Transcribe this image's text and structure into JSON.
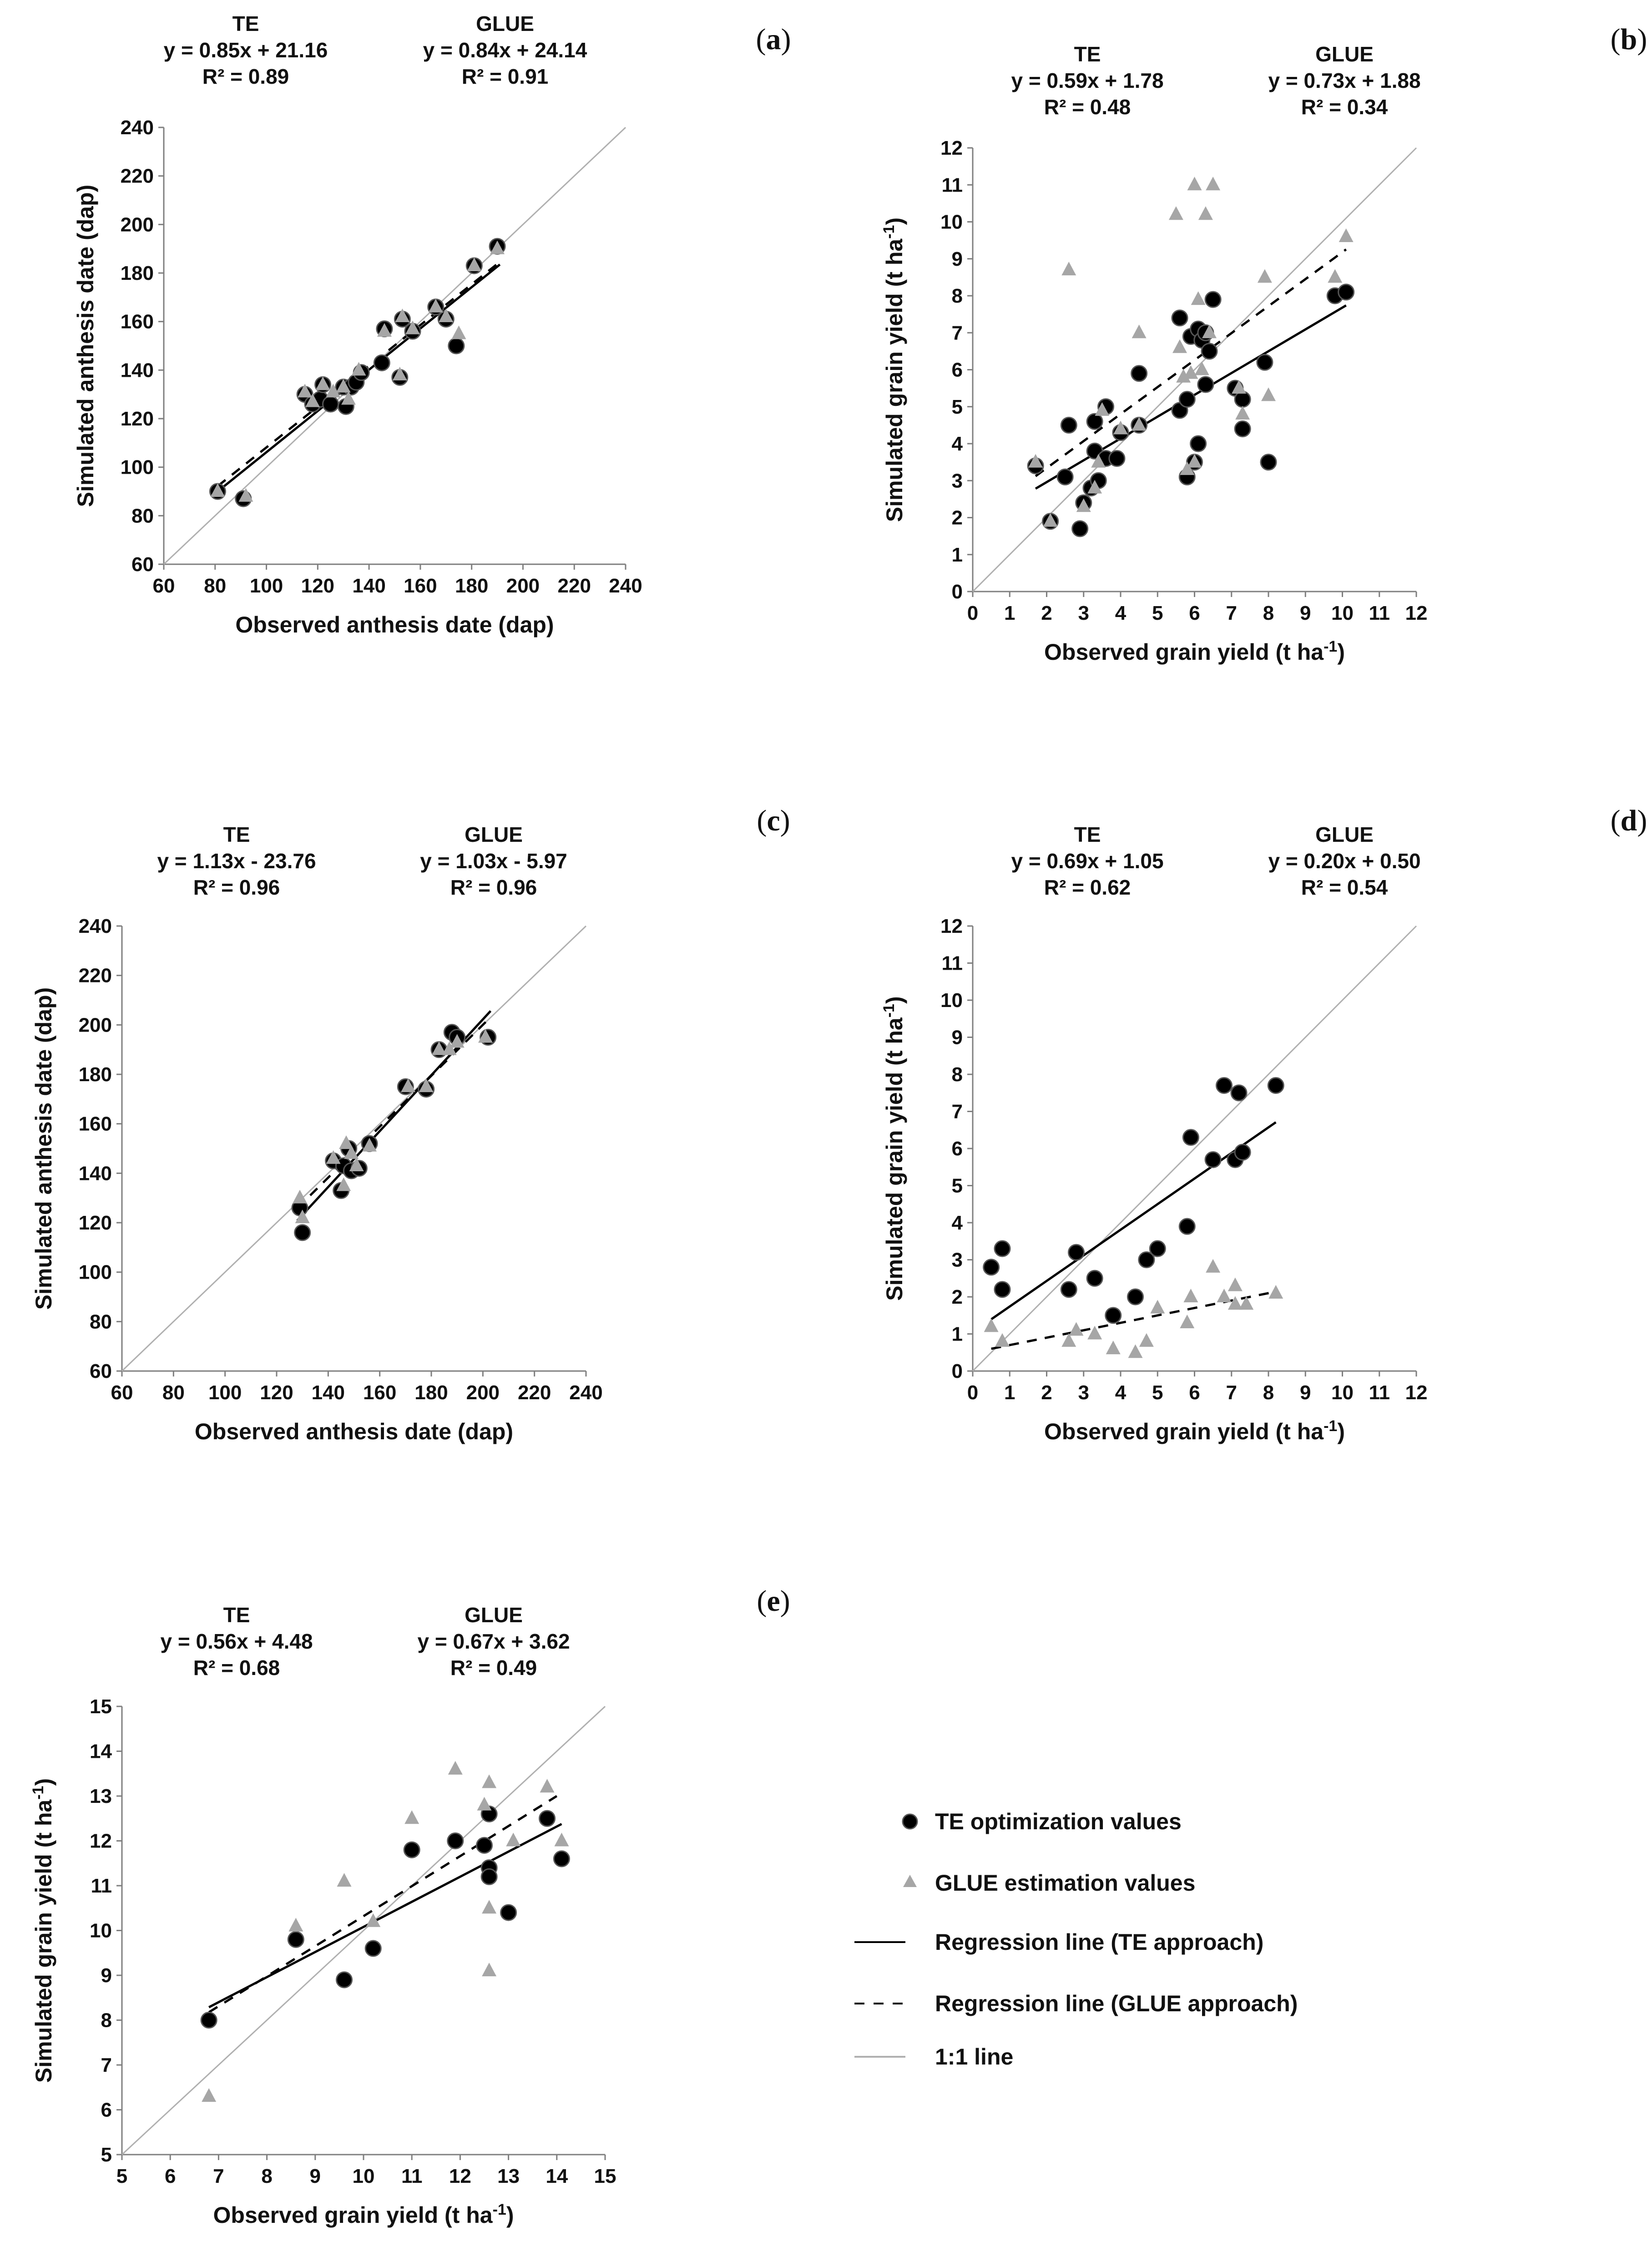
{
  "chart_data": [
    {
      "id": "a",
      "type": "scatter",
      "panel_label": "a",
      "xlabel": "Observed anthesis date (dap)",
      "ylabel": "Simulated anthesis date (dap)",
      "xlim": [
        60,
        240
      ],
      "ylim": [
        60,
        240
      ],
      "xticks": [
        60,
        80,
        100,
        120,
        140,
        160,
        180,
        200,
        220,
        240
      ],
      "yticks": [
        60,
        80,
        100,
        120,
        140,
        160,
        180,
        200,
        220,
        240
      ],
      "te_header": {
        "name": "TE",
        "equation": "y = 0.85x + 21.16",
        "r2": "R² = 0.89"
      },
      "glue_header": {
        "name": "GLUE",
        "equation": "y = 0.84x + 24.14",
        "r2": "R² = 0.91"
      },
      "te_line": {
        "slope": 0.85,
        "intercept": 21.16,
        "x_range": [
          81,
          191
        ]
      },
      "glue_line": {
        "slope": 0.84,
        "intercept": 24.14,
        "x_range": [
          81,
          191
        ]
      },
      "te_points": [
        [
          81,
          90
        ],
        [
          91,
          87
        ],
        [
          115,
          130
        ],
        [
          118,
          126
        ],
        [
          121,
          128
        ],
        [
          122,
          134
        ],
        [
          125,
          126
        ],
        [
          130,
          133
        ],
        [
          131,
          125
        ],
        [
          133,
          133
        ],
        [
          135,
          135
        ],
        [
          137,
          139
        ],
        [
          145,
          143
        ],
        [
          146,
          157
        ],
        [
          152,
          137
        ],
        [
          153,
          161
        ],
        [
          157,
          156
        ],
        [
          166,
          166
        ],
        [
          170,
          161
        ],
        [
          174,
          150
        ],
        [
          181,
          183
        ],
        [
          190,
          191
        ]
      ],
      "glue_points": [
        [
          81,
          90
        ],
        [
          92,
          88
        ],
        [
          115,
          131
        ],
        [
          118,
          127
        ],
        [
          122,
          134
        ],
        [
          126,
          131
        ],
        [
          130,
          133
        ],
        [
          132,
          128
        ],
        [
          136,
          140
        ],
        [
          146,
          156
        ],
        [
          152,
          138
        ],
        [
          153,
          162
        ],
        [
          157,
          157
        ],
        [
          166,
          166
        ],
        [
          170,
          162
        ],
        [
          175,
          155
        ],
        [
          181,
          183
        ],
        [
          190,
          190
        ]
      ]
    },
    {
      "id": "b",
      "type": "scatter",
      "panel_label": "b",
      "xlabel": "Observed grain yield (t ha-1)",
      "ylabel": "Simulated grain yield (t ha-1)",
      "xlim": [
        0,
        12
      ],
      "ylim": [
        0,
        12
      ],
      "xticks": [
        0,
        1,
        2,
        3,
        4,
        5,
        6,
        7,
        8,
        9,
        10,
        11,
        12
      ],
      "yticks": [
        0,
        1,
        2,
        3,
        4,
        5,
        6,
        7,
        8,
        9,
        10,
        11,
        12
      ],
      "te_header": {
        "name": "TE",
        "equation": "y = 0.59x + 1.78",
        "r2": "R² = 0.48"
      },
      "glue_header": {
        "name": "GLUE",
        "equation": "y = 0.73x + 1.88",
        "r2": "R² = 0.34"
      },
      "te_line": {
        "slope": 0.59,
        "intercept": 1.78,
        "x_range": [
          1.7,
          10.1
        ]
      },
      "glue_line": {
        "slope": 0.73,
        "intercept": 1.88,
        "x_range": [
          1.7,
          10.1
        ]
      },
      "te_points": [
        [
          1.7,
          3.4
        ],
        [
          2.1,
          1.9
        ],
        [
          2.5,
          3.1
        ],
        [
          2.6,
          4.5
        ],
        [
          2.9,
          1.7
        ],
        [
          3.0,
          2.4
        ],
        [
          3.2,
          2.8
        ],
        [
          3.3,
          4.6
        ],
        [
          3.3,
          3.8
        ],
        [
          3.4,
          3.0
        ],
        [
          3.6,
          5.0
        ],
        [
          3.6,
          3.6
        ],
        [
          3.9,
          3.6
        ],
        [
          4.0,
          4.3
        ],
        [
          4.5,
          5.9
        ],
        [
          4.5,
          4.5
        ],
        [
          5.6,
          7.4
        ],
        [
          5.6,
          4.9
        ],
        [
          5.8,
          5.2
        ],
        [
          5.8,
          3.1
        ],
        [
          5.9,
          6.9
        ],
        [
          6.0,
          3.5
        ],
        [
          6.1,
          7.1
        ],
        [
          6.1,
          4.0
        ],
        [
          6.2,
          6.8
        ],
        [
          6.3,
          5.6
        ],
        [
          6.3,
          7.0
        ],
        [
          6.4,
          6.5
        ],
        [
          6.5,
          7.9
        ],
        [
          7.1,
          5.5
        ],
        [
          7.3,
          5.2
        ],
        [
          7.3,
          4.4
        ],
        [
          7.9,
          6.2
        ],
        [
          8.0,
          3.5
        ],
        [
          9.8,
          8.0
        ],
        [
          10.1,
          8.1
        ]
      ],
      "glue_points": [
        [
          1.7,
          3.5
        ],
        [
          2.1,
          1.9
        ],
        [
          2.6,
          8.7
        ],
        [
          3.0,
          2.3
        ],
        [
          3.3,
          2.8
        ],
        [
          3.4,
          3.5
        ],
        [
          3.5,
          4.9
        ],
        [
          4.0,
          4.4
        ],
        [
          4.5,
          7.0
        ],
        [
          4.5,
          4.5
        ],
        [
          5.5,
          10.2
        ],
        [
          5.6,
          6.6
        ],
        [
          5.7,
          5.8
        ],
        [
          5.8,
          3.3
        ],
        [
          5.9,
          5.9
        ],
        [
          6.0,
          3.5
        ],
        [
          6.0,
          11.0
        ],
        [
          6.1,
          7.9
        ],
        [
          6.2,
          6.0
        ],
        [
          6.3,
          10.2
        ],
        [
          6.4,
          7.0
        ],
        [
          6.5,
          11.0
        ],
        [
          7.2,
          5.5
        ],
        [
          7.3,
          4.8
        ],
        [
          7.9,
          8.5
        ],
        [
          8.0,
          5.3
        ],
        [
          9.8,
          8.5
        ],
        [
          10.1,
          9.6
        ]
      ]
    },
    {
      "id": "c",
      "type": "scatter",
      "panel_label": "c",
      "xlabel": "Observed anthesis date (dap)",
      "ylabel": "Simulated anthesis date (dap)",
      "xlim": [
        60,
        240
      ],
      "ylim": [
        60,
        240
      ],
      "xticks": [
        60,
        80,
        100,
        120,
        140,
        160,
        180,
        200,
        220,
        240
      ],
      "yticks": [
        60,
        80,
        100,
        120,
        140,
        160,
        180,
        200,
        220,
        240
      ],
      "te_header": {
        "name": "TE",
        "equation": "y = 1.13x - 23.76",
        "r2": "R² = 0.96"
      },
      "glue_header": {
        "name": "GLUE",
        "equation": "y = 1.03x - 5.97",
        "r2": "R² = 0.96"
      },
      "te_line": {
        "slope": 1.13,
        "intercept": -23.76,
        "x_range": [
          128,
          203
        ]
      },
      "glue_line": {
        "slope": 1.03,
        "intercept": -5.97,
        "x_range": [
          128,
          203
        ]
      },
      "te_points": [
        [
          129,
          126
        ],
        [
          130,
          116
        ],
        [
          142,
          145
        ],
        [
          145,
          133
        ],
        [
          146,
          143
        ],
        [
          148,
          150
        ],
        [
          149,
          141
        ],
        [
          152,
          142
        ],
        [
          156,
          152
        ],
        [
          170,
          175
        ],
        [
          178,
          174
        ],
        [
          183,
          190
        ],
        [
          188,
          197
        ],
        [
          190,
          195
        ],
        [
          202,
          195
        ]
      ],
      "glue_points": [
        [
          129,
          130
        ],
        [
          130,
          122
        ],
        [
          142,
          146
        ],
        [
          146,
          135
        ],
        [
          147,
          152
        ],
        [
          149,
          148
        ],
        [
          151,
          143
        ],
        [
          156,
          151
        ],
        [
          171,
          175
        ],
        [
          178,
          175
        ],
        [
          183,
          190
        ],
        [
          187,
          190
        ],
        [
          190,
          193
        ],
        [
          201,
          195
        ]
      ]
    },
    {
      "id": "d",
      "type": "scatter",
      "panel_label": "d",
      "xlabel": "Observed grain yield (t ha-1)",
      "ylabel": "Simulated grain yield (t ha-1)",
      "xlim": [
        0,
        12
      ],
      "ylim": [
        0,
        12
      ],
      "xticks": [
        0,
        1,
        2,
        3,
        4,
        5,
        6,
        7,
        8,
        9,
        10,
        11,
        12
      ],
      "yticks": [
        0,
        1,
        2,
        3,
        4,
        5,
        6,
        7,
        8,
        9,
        10,
        11,
        12
      ],
      "te_header": {
        "name": "TE",
        "equation": "y = 0.69x + 1.05",
        "r2": "R² = 0.62"
      },
      "glue_header": {
        "name": "GLUE",
        "equation": "y = 0.20x + 0.50",
        "r2": "R² = 0.54"
      },
      "te_line": {
        "slope": 0.69,
        "intercept": 1.05,
        "x_range": [
          0.5,
          8.2
        ]
      },
      "glue_line": {
        "slope": 0.2,
        "intercept": 0.5,
        "x_range": [
          0.5,
          8.2
        ]
      },
      "te_points": [
        [
          0.5,
          2.8
        ],
        [
          0.8,
          2.2
        ],
        [
          0.8,
          3.3
        ],
        [
          2.6,
          2.2
        ],
        [
          2.8,
          3.2
        ],
        [
          3.3,
          2.5
        ],
        [
          3.8,
          1.5
        ],
        [
          4.4,
          2.0
        ],
        [
          4.7,
          3.0
        ],
        [
          5.0,
          3.3
        ],
        [
          5.8,
          3.9
        ],
        [
          5.9,
          6.3
        ],
        [
          6.5,
          5.7
        ],
        [
          6.8,
          7.7
        ],
        [
          7.1,
          5.7
        ],
        [
          7.2,
          7.5
        ],
        [
          7.3,
          5.9
        ],
        [
          8.2,
          7.7
        ]
      ],
      "glue_points": [
        [
          0.5,
          1.2
        ],
        [
          0.8,
          0.8
        ],
        [
          2.6,
          0.8
        ],
        [
          2.8,
          1.1
        ],
        [
          3.3,
          1.0
        ],
        [
          3.8,
          0.6
        ],
        [
          4.4,
          0.5
        ],
        [
          4.7,
          0.8
        ],
        [
          5.0,
          1.7
        ],
        [
          5.8,
          1.3
        ],
        [
          5.9,
          2.0
        ],
        [
          6.5,
          2.8
        ],
        [
          6.8,
          2.0
        ],
        [
          7.1,
          1.8
        ],
        [
          7.1,
          2.3
        ],
        [
          7.4,
          1.8
        ],
        [
          8.2,
          2.1
        ]
      ]
    },
    {
      "id": "e",
      "type": "scatter",
      "panel_label": "e",
      "xlabel": "Observed grain yield (t ha-1)",
      "ylabel": "Simulated grain yield (t ha-1)",
      "xlim": [
        5,
        15
      ],
      "ylim": [
        5,
        15
      ],
      "xticks": [
        5,
        6,
        7,
        8,
        9,
        10,
        11,
        12,
        13,
        14,
        15
      ],
      "yticks": [
        5,
        6,
        7,
        8,
        9,
        10,
        11,
        12,
        13,
        14,
        15
      ],
      "te_header": {
        "name": "TE",
        "equation": "y = 0.56x + 4.48",
        "r2": "R² = 0.68"
      },
      "glue_header": {
        "name": "GLUE",
        "equation": "y = 0.67x + 3.62",
        "r2": "R² = 0.49"
      },
      "te_line": {
        "slope": 0.56,
        "intercept": 4.48,
        "x_range": [
          6.8,
          14.1
        ]
      },
      "glue_line": {
        "slope": 0.67,
        "intercept": 3.62,
        "x_range": [
          6.8,
          14.0
        ]
      },
      "te_points": [
        [
          6.8,
          8.0
        ],
        [
          8.6,
          9.8
        ],
        [
          9.6,
          8.9
        ],
        [
          10.2,
          9.6
        ],
        [
          11.0,
          11.8
        ],
        [
          11.9,
          12.0
        ],
        [
          12.5,
          11.9
        ],
        [
          12.6,
          11.4
        ],
        [
          12.6,
          11.2
        ],
        [
          12.6,
          12.6
        ],
        [
          13.0,
          10.4
        ],
        [
          13.8,
          12.5
        ],
        [
          14.1,
          11.6
        ]
      ],
      "glue_points": [
        [
          6.8,
          6.3
        ],
        [
          8.6,
          10.1
        ],
        [
          9.6,
          11.1
        ],
        [
          10.2,
          10.2
        ],
        [
          11.0,
          12.5
        ],
        [
          11.9,
          13.6
        ],
        [
          12.5,
          12.8
        ],
        [
          12.6,
          13.3
        ],
        [
          12.6,
          10.5
        ],
        [
          12.6,
          9.1
        ],
        [
          13.1,
          12.0
        ],
        [
          13.8,
          13.2
        ],
        [
          14.1,
          12.0
        ]
      ]
    }
  ],
  "legend": {
    "te_points": "TE optimization values",
    "glue_points": "GLUE estimation values",
    "te_line": "Regression line (TE approach)",
    "glue_line": "Regression line (GLUE approach)",
    "one_to_one": "1:1 line"
  },
  "colors": {
    "te_marker": "#000000",
    "glue_marker": "#a6a6a6",
    "one_to_one": "#b0b0b0",
    "axis": "#7f7f7f",
    "regression": "#000000"
  }
}
